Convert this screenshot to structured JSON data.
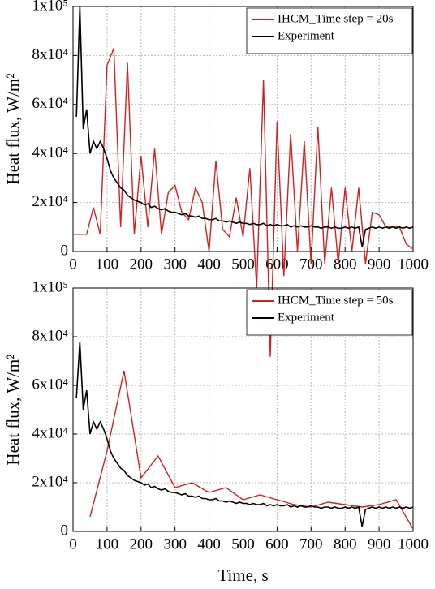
{
  "chart_data": [
    {
      "type": "line",
      "ylabel": "Heat flux, W/m²",
      "xlim": [
        0,
        1000
      ],
      "xticks": [
        0,
        100,
        200,
        300,
        400,
        500,
        600,
        700,
        800,
        900,
        1000
      ],
      "ylim": [
        0,
        100000
      ],
      "yticks": [
        0,
        {
          "value": 20000,
          "label": "2x10⁴"
        },
        {
          "value": 40000,
          "label": "4x10⁴"
        },
        {
          "value": 60000,
          "label": "6x10⁴"
        },
        {
          "value": 80000,
          "label": "8x10⁴"
        },
        {
          "value": 100000,
          "label": "1x10⁵"
        }
      ],
      "grid": true,
      "legend": "upper right",
      "series": [
        {
          "name": "IHCM_Time step = 20s",
          "color": "#d42020",
          "x": [
            0,
            20,
            40,
            60,
            80,
            100,
            120,
            140,
            160,
            180,
            200,
            220,
            240,
            260,
            280,
            300,
            320,
            340,
            360,
            380,
            400,
            420,
            440,
            460,
            480,
            500,
            520,
            540,
            560,
            580,
            600,
            620,
            640,
            660,
            680,
            700,
            720,
            740,
            760,
            780,
            800,
            820,
            840,
            860,
            880,
            900,
            920,
            940,
            960,
            980,
            1000
          ],
          "values": [
            7000,
            7000,
            7000,
            18000,
            7000,
            76000,
            83000,
            10000,
            77000,
            7000,
            39000,
            10000,
            42000,
            7000,
            24000,
            27000,
            16000,
            13000,
            26000,
            20000,
            0,
            37000,
            9000,
            6000,
            22000,
            6000,
            34000,
            -15000,
            70000,
            -43000,
            53000,
            -10000,
            48000,
            0,
            45000,
            -5000,
            51000,
            -5000,
            26000,
            -5000,
            26000,
            0,
            26000,
            -5000,
            16000,
            15000,
            10000,
            10000,
            10000,
            3000,
            1000
          ]
        },
        {
          "name": "Experiment",
          "color": "#000000",
          "x": [
            10,
            20,
            30,
            40,
            50,
            60,
            70,
            80,
            90,
            100,
            110,
            120,
            130,
            140,
            150,
            160,
            170,
            180,
            190,
            200,
            210,
            220,
            230,
            240,
            250,
            260,
            270,
            280,
            290,
            300,
            310,
            320,
            330,
            340,
            350,
            360,
            370,
            380,
            390,
            400,
            410,
            420,
            430,
            440,
            450,
            460,
            470,
            480,
            490,
            500,
            510,
            520,
            530,
            540,
            550,
            560,
            570,
            580,
            590,
            600,
            610,
            620,
            630,
            640,
            650,
            660,
            670,
            680,
            690,
            700,
            710,
            720,
            730,
            740,
            750,
            760,
            770,
            780,
            790,
            800,
            810,
            820,
            830,
            840,
            850,
            860,
            870,
            880,
            890,
            900,
            910,
            920,
            930,
            940,
            950,
            960,
            970,
            980,
            990,
            1000
          ],
          "values": [
            55000,
            100000,
            50000,
            58000,
            40000,
            45000,
            42000,
            45000,
            42000,
            38000,
            33000,
            30000,
            28000,
            26000,
            25000,
            23000,
            22000,
            21000,
            20500,
            20000,
            19000,
            19500,
            18000,
            18500,
            17500,
            17000,
            17500,
            16500,
            16000,
            16000,
            15500,
            15000,
            15500,
            14500,
            14500,
            14000,
            14500,
            13500,
            13500,
            13000,
            13000,
            13500,
            12500,
            12500,
            12000,
            12500,
            12000,
            11500,
            12000,
            11500,
            11500,
            11000,
            11500,
            11000,
            11000,
            11500,
            10500,
            11000,
            10500,
            11000,
            10500,
            10500,
            11000,
            10000,
            10500,
            10000,
            10500,
            10000,
            10000,
            10500,
            10000,
            10000,
            9500,
            10000,
            10000,
            9500,
            10000,
            9500,
            9500,
            10000,
            9500,
            10000,
            9500,
            10000,
            2000,
            9000,
            9500,
            10000,
            9500,
            10000,
            9500,
            10000,
            9500,
            10000,
            9500,
            10000,
            9500,
            10000,
            9500,
            10000
          ]
        }
      ]
    },
    {
      "type": "line",
      "xlabel": "Time, s",
      "ylabel": "Heat flux, W/m²",
      "xlim": [
        0,
        1000
      ],
      "xticks": [
        0,
        100,
        200,
        300,
        400,
        500,
        600,
        700,
        800,
        900,
        1000
      ],
      "ylim": [
        0,
        100000
      ],
      "yticks": [
        0,
        {
          "value": 20000,
          "label": "2x10⁴"
        },
        {
          "value": 40000,
          "label": "4x10⁴"
        },
        {
          "value": 60000,
          "label": "6x10⁴"
        },
        {
          "value": 80000,
          "label": "8x10⁴"
        },
        {
          "value": 100000,
          "label": "1x10⁵"
        }
      ],
      "grid": true,
      "legend": "upper right",
      "series": [
        {
          "name": "IHCM_Time step = 50s",
          "color": "#d42020",
          "x": [
            50,
            100,
            150,
            200,
            250,
            300,
            350,
            400,
            450,
            500,
            550,
            600,
            650,
            700,
            750,
            800,
            850,
            900,
            950,
            1000
          ],
          "values": [
            6000,
            33000,
            66000,
            22000,
            31000,
            18000,
            20000,
            16000,
            18000,
            13000,
            15000,
            13000,
            11000,
            10000,
            12000,
            11000,
            10000,
            11000,
            13000,
            1000
          ]
        },
        {
          "name": "Experiment",
          "color": "#000000",
          "x": [
            10,
            20,
            30,
            40,
            50,
            60,
            70,
            80,
            90,
            100,
            110,
            120,
            130,
            140,
            150,
            160,
            170,
            180,
            190,
            200,
            210,
            220,
            230,
            240,
            250,
            260,
            270,
            280,
            290,
            300,
            310,
            320,
            330,
            340,
            350,
            360,
            370,
            380,
            390,
            400,
            410,
            420,
            430,
            440,
            450,
            460,
            470,
            480,
            490,
            500,
            510,
            520,
            530,
            540,
            550,
            560,
            570,
            580,
            590,
            600,
            610,
            620,
            630,
            640,
            650,
            660,
            670,
            680,
            690,
            700,
            710,
            720,
            730,
            740,
            750,
            760,
            770,
            780,
            790,
            800,
            810,
            820,
            830,
            840,
            850,
            860,
            870,
            880,
            890,
            900,
            910,
            920,
            930,
            940,
            950,
            960,
            970,
            980,
            990,
            1000
          ],
          "values": [
            55000,
            78000,
            50000,
            58000,
            40000,
            45000,
            42000,
            45000,
            42000,
            38000,
            33000,
            30000,
            28000,
            26000,
            25000,
            23000,
            22000,
            21000,
            20500,
            20000,
            19000,
            19500,
            18000,
            18500,
            17500,
            17000,
            17500,
            16500,
            16000,
            16000,
            15500,
            15000,
            15500,
            14500,
            14500,
            14000,
            14500,
            13500,
            13500,
            13000,
            13000,
            13500,
            12500,
            12500,
            12000,
            12500,
            12000,
            11500,
            12000,
            11500,
            11500,
            11000,
            11500,
            11000,
            11000,
            11500,
            10500,
            11000,
            10500,
            11000,
            10500,
            10500,
            11000,
            10000,
            10500,
            10000,
            10500,
            10000,
            10000,
            10500,
            10000,
            10000,
            9500,
            10000,
            10000,
            9500,
            10000,
            9500,
            9500,
            10000,
            9500,
            10000,
            9500,
            10000,
            2000,
            9000,
            9500,
            10000,
            9500,
            10000,
            9500,
            10000,
            9500,
            10000,
            9500,
            10000,
            9500,
            10000,
            9500,
            10000
          ]
        }
      ]
    }
  ]
}
